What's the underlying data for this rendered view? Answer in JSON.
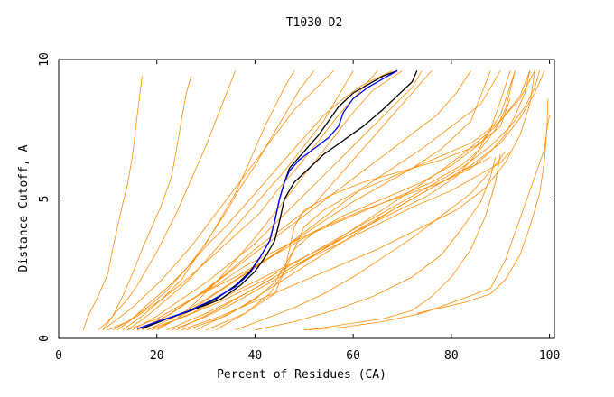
{
  "chart_data": {
    "type": "line",
    "title": "T1030-D2",
    "xlabel": "Percent of Residues (CA)",
    "ylabel": "Distance Cutoff, A",
    "xlim": [
      0,
      101
    ],
    "ylim": [
      0,
      10
    ],
    "xticks": [
      0,
      20,
      40,
      60,
      80,
      100
    ],
    "yticks": [
      0,
      5,
      10
    ],
    "grid": false,
    "legend": "none",
    "colors": {
      "models": "#ff8c00",
      "highlight_black": "#000000",
      "highlight_blue": "#0000ff"
    },
    "series": [
      {
        "color": "#ff8c00",
        "x": [
          5,
          6,
          8,
          10,
          11,
          12,
          13,
          14,
          15,
          16,
          17
        ],
        "y": [
          0.3,
          0.8,
          1.5,
          2.3,
          3.2,
          4.0,
          4.8,
          5.5,
          6.5,
          8.0,
          9.4
        ]
      },
      {
        "color": "#ff8c00",
        "x": [
          9,
          11,
          13,
          15,
          17,
          19,
          21,
          23,
          24,
          25,
          26,
          27
        ],
        "y": [
          0.3,
          0.8,
          1.5,
          2.3,
          3.2,
          4.0,
          4.8,
          5.8,
          6.8,
          7.8,
          8.8,
          9.4
        ]
      },
      {
        "color": "#ff8c00",
        "x": [
          12,
          15,
          18,
          22,
          26,
          30,
          34,
          38,
          42,
          46,
          50,
          54,
          58,
          62,
          68
        ],
        "y": [
          0.3,
          0.7,
          1.2,
          1.8,
          2.5,
          3.3,
          4.0,
          4.8,
          5.6,
          6.4,
          7.2,
          8.0,
          8.6,
          9.1,
          9.6
        ]
      },
      {
        "color": "#ff8c00",
        "x": [
          10,
          14,
          18,
          22,
          26,
          30,
          33,
          36,
          38,
          40,
          42,
          44,
          46,
          48
        ],
        "y": [
          0.3,
          0.6,
          1.1,
          1.7,
          2.5,
          3.4,
          4.3,
          5.2,
          6.0,
          6.8,
          7.6,
          8.3,
          9.0,
          9.6
        ]
      },
      {
        "color": "#ff8c00",
        "x": [
          14,
          18,
          22,
          26,
          30,
          34,
          38,
          42,
          46,
          50,
          54,
          57,
          60
        ],
        "y": [
          0.3,
          0.8,
          1.4,
          2.0,
          2.8,
          3.6,
          4.4,
          5.2,
          6.0,
          6.9,
          7.8,
          8.7,
          9.6
        ]
      },
      {
        "color": "#ff8c00",
        "x": [
          13,
          17,
          21,
          25,
          28,
          31,
          34,
          37,
          40,
          43,
          46,
          49,
          52
        ],
        "y": [
          0.3,
          0.8,
          1.4,
          2.1,
          2.9,
          3.7,
          4.5,
          5.4,
          6.2,
          7.1,
          8.0,
          8.9,
          9.6
        ]
      },
      {
        "color": "#ff8c00",
        "x": [
          20,
          24,
          28,
          32,
          36,
          40,
          44,
          48,
          52,
          56,
          60,
          64,
          70
        ],
        "y": [
          0.3,
          0.7,
          1.3,
          2.0,
          2.8,
          3.6,
          4.5,
          5.4,
          6.3,
          7.2,
          8.1,
          8.9,
          9.6
        ]
      },
      {
        "color": "#ff8c00",
        "x": [
          16,
          22,
          28,
          34,
          40,
          46,
          52,
          56,
          60,
          64,
          68,
          72,
          76
        ],
        "y": [
          0.3,
          0.8,
          1.5,
          2.3,
          3.2,
          4.0,
          4.8,
          5.6,
          6.4,
          7.2,
          8.0,
          8.8,
          9.6
        ]
      },
      {
        "color": "#ff8c00",
        "x": [
          20,
          26,
          32,
          38,
          44,
          50,
          56,
          62,
          68,
          74,
          80,
          86,
          90
        ],
        "y": [
          0.3,
          0.9,
          1.6,
          2.3,
          3.0,
          3.8,
          4.6,
          5.4,
          6.1,
          6.8,
          7.6,
          8.4,
          9.6
        ]
      },
      {
        "color": "#ff8c00",
        "x": [
          18,
          24,
          30,
          36,
          42,
          48,
          54,
          60,
          66,
          72,
          78,
          84,
          88
        ],
        "y": [
          0.3,
          0.8,
          1.4,
          2.1,
          2.8,
          3.5,
          4.2,
          4.9,
          5.5,
          6.1,
          6.8,
          7.8,
          9.6
        ]
      },
      {
        "color": "#ff8c00",
        "x": [
          22,
          30,
          38,
          46,
          54,
          62,
          70,
          76,
          82,
          86,
          88
        ],
        "y": [
          0.3,
          0.9,
          1.6,
          2.4,
          3.2,
          4.0,
          4.8,
          5.4,
          6.0,
          6.3,
          6.5
        ]
      },
      {
        "color": "#ff8c00",
        "x": [
          24,
          32,
          40,
          48,
          56,
          64,
          72,
          80,
          86,
          90,
          92
        ],
        "y": [
          0.3,
          1.0,
          1.8,
          2.6,
          3.3,
          4.0,
          4.7,
          5.3,
          5.9,
          6.3,
          6.7
        ]
      },
      {
        "color": "#ff8c00",
        "x": [
          16,
          22,
          28,
          36,
          44,
          52,
          60,
          68,
          76,
          82,
          86,
          89,
          91,
          92,
          93
        ],
        "y": [
          0.3,
          0.8,
          1.5,
          2.2,
          3.0,
          3.8,
          4.4,
          5.0,
          5.6,
          6.2,
          6.8,
          7.5,
          8.2,
          8.9,
          9.6
        ]
      },
      {
        "color": "#ff8c00",
        "x": [
          14,
          20,
          26,
          32,
          38,
          46,
          54,
          62,
          70,
          78,
          84,
          88,
          91,
          93,
          95,
          96
        ],
        "y": [
          0.3,
          0.7,
          1.3,
          1.9,
          2.6,
          3.3,
          4.0,
          4.6,
          5.1,
          5.6,
          6.1,
          6.7,
          7.3,
          8.0,
          8.8,
          9.6
        ]
      },
      {
        "color": "#ff8c00",
        "x": [
          18,
          26,
          34,
          42,
          50,
          58,
          66,
          74,
          82,
          88,
          92,
          95,
          97,
          98
        ],
        "y": [
          0.3,
          0.8,
          1.4,
          2.1,
          2.9,
          3.7,
          4.5,
          5.3,
          6.1,
          6.9,
          7.6,
          8.3,
          9.0,
          9.6
        ]
      },
      {
        "color": "#ff8c00",
        "x": [
          28,
          36,
          44,
          52,
          60,
          68,
          76,
          84,
          90,
          94,
          97,
          99
        ],
        "y": [
          0.3,
          1.0,
          1.9,
          2.8,
          3.7,
          4.6,
          5.4,
          6.2,
          7.0,
          7.9,
          8.8,
          9.6
        ]
      },
      {
        "color": "#ff8c00",
        "x": [
          26,
          34,
          40,
          44,
          46,
          48,
          52,
          58,
          66,
          74,
          80,
          86,
          90,
          93
        ],
        "y": [
          0.3,
          0.8,
          1.4,
          2.0,
          2.6,
          3.2,
          3.8,
          4.4,
          5.0,
          5.6,
          6.2,
          7.0,
          8.0,
          9.6
        ]
      },
      {
        "color": "#ff8c00",
        "x": [
          30,
          38,
          44,
          46,
          47,
          48,
          50,
          55,
          62,
          70,
          78,
          85,
          90,
          92
        ],
        "y": [
          0.3,
          0.9,
          1.6,
          2.4,
          3.2,
          4.0,
          4.6,
          5.1,
          5.6,
          6.0,
          6.4,
          6.9,
          7.6,
          8.6
        ]
      },
      {
        "color": "#ff8c00",
        "x": [
          36,
          42,
          48,
          54,
          60,
          66,
          72,
          78,
          84,
          88,
          91
        ],
        "y": [
          0.3,
          0.7,
          1.1,
          1.6,
          2.2,
          2.9,
          3.6,
          4.4,
          5.2,
          6.0,
          6.7
        ]
      },
      {
        "color": "#ff8c00",
        "x": [
          40,
          48,
          56,
          64,
          72,
          78,
          82,
          86,
          88,
          89
        ],
        "y": [
          0.3,
          0.6,
          1.0,
          1.5,
          2.2,
          3.0,
          3.9,
          4.9,
          5.8,
          6.5
        ]
      },
      {
        "color": "#ff8c00",
        "x": [
          51,
          58,
          66,
          72,
          76,
          80,
          84,
          87,
          89,
          90
        ],
        "y": [
          0.3,
          0.5,
          0.7,
          1.0,
          1.5,
          2.2,
          3.2,
          4.4,
          5.6,
          6.6
        ]
      },
      {
        "color": "#ff8c00",
        "x": [
          50,
          58,
          66,
          74,
          82,
          88,
          91,
          93,
          95,
          97,
          99,
          99.5,
          100
        ],
        "y": [
          0.3,
          0.4,
          0.6,
          0.9,
          1.4,
          1.8,
          2.8,
          3.8,
          4.8,
          5.8,
          6.8,
          7.5,
          8.0
        ]
      },
      {
        "color": "#ff8c00",
        "x": [
          73,
          78,
          83,
          88,
          91,
          94,
          96,
          98,
          99,
          99.5,
          99.7
        ],
        "y": [
          0.9,
          1.1,
          1.3,
          1.6,
          2.1,
          3.0,
          4.0,
          5.2,
          6.4,
          7.6,
          8.6
        ]
      },
      {
        "color": "#ff8c00",
        "x": [
          8,
          10,
          12,
          14,
          16,
          18,
          20,
          22,
          24,
          26,
          28,
          30,
          32,
          34,
          36
        ],
        "y": [
          0.3,
          0.6,
          1.0,
          1.4,
          1.9,
          2.5,
          3.1,
          3.8,
          4.5,
          5.3,
          6.1,
          6.9,
          7.8,
          8.7,
          9.6
        ]
      },
      {
        "color": "#ff8c00",
        "x": [
          9,
          12,
          15,
          18,
          21,
          24,
          27,
          30,
          33,
          36,
          39,
          42,
          45,
          48,
          52,
          56
        ],
        "y": [
          0.3,
          0.7,
          1.1,
          1.6,
          2.1,
          2.7,
          3.3,
          4.0,
          4.7,
          5.4,
          6.1,
          6.8,
          7.5,
          8.2,
          8.9,
          9.6
        ]
      },
      {
        "color": "#ff8c00",
        "x": [
          15,
          20,
          25,
          30,
          35,
          40,
          44,
          48,
          52,
          56,
          60,
          64,
          68,
          72,
          74
        ],
        "y": [
          0.3,
          0.8,
          1.4,
          2.0,
          2.7,
          3.4,
          4.1,
          4.8,
          5.5,
          6.2,
          6.9,
          7.6,
          8.3,
          9.0,
          9.6
        ]
      },
      {
        "color": "#ff8c00",
        "x": [
          17,
          23,
          29,
          35,
          41,
          47,
          53,
          59,
          65,
          71,
          77,
          81,
          84
        ],
        "y": [
          0.3,
          0.9,
          1.6,
          2.4,
          3.2,
          4.0,
          4.8,
          5.6,
          6.4,
          7.2,
          8.0,
          8.8,
          9.6
        ]
      },
      {
        "color": "#ff8c00",
        "x": [
          19,
          27,
          35,
          43,
          51,
          59,
          67,
          75,
          81,
          85,
          88,
          90,
          92
        ],
        "y": [
          0.3,
          0.9,
          1.6,
          2.3,
          3.0,
          3.7,
          4.4,
          5.1,
          5.8,
          6.6,
          7.5,
          8.5,
          9.6
        ]
      },
      {
        "color": "#ff8c00",
        "x": [
          11,
          16,
          21,
          26,
          31,
          36,
          41,
          45,
          49,
          53,
          57,
          61,
          65
        ],
        "y": [
          0.3,
          0.8,
          1.4,
          2.1,
          2.9,
          3.7,
          4.5,
          5.4,
          6.2,
          7.1,
          8.0,
          8.8,
          9.6
        ]
      },
      {
        "color": "#ff8c00",
        "x": [
          23,
          29,
          35,
          41,
          47,
          53,
          59,
          65,
          71,
          77,
          83,
          89,
          94,
          97
        ],
        "y": [
          0.3,
          0.7,
          1.2,
          1.8,
          2.4,
          3.1,
          3.8,
          4.5,
          5.2,
          5.9,
          6.7,
          7.6,
          8.6,
          9.6
        ]
      },
      {
        "color": "#ff8c00",
        "x": [
          32,
          38,
          43,
          46,
          48,
          50,
          54,
          60,
          68,
          76,
          84,
          90,
          94,
          96
        ],
        "y": [
          0.3,
          0.9,
          1.6,
          2.4,
          3.2,
          4.0,
          4.6,
          5.2,
          5.8,
          6.4,
          7.0,
          7.8,
          8.7,
          9.6
        ]
      },
      {
        "color": "#ff8c00",
        "x": [
          25,
          33,
          41,
          49,
          57,
          65,
          73,
          81,
          87,
          91,
          94,
          96,
          97
        ],
        "y": [
          0.3,
          0.8,
          1.4,
          2.0,
          2.6,
          3.2,
          3.9,
          4.6,
          5.4,
          6.3,
          7.3,
          8.4,
          9.6
        ]
      },
      {
        "color": "#000000",
        "x": [
          17,
          22,
          27,
          32,
          36,
          39,
          41,
          43,
          44,
          45,
          46,
          47,
          49,
          51,
          53,
          55,
          57,
          60,
          63,
          66,
          69
        ],
        "y": [
          0.35,
          0.7,
          1.0,
          1.4,
          1.9,
          2.4,
          2.9,
          3.5,
          4.2,
          5.0,
          5.6,
          6.1,
          6.5,
          6.9,
          7.3,
          7.8,
          8.3,
          8.8,
          9.1,
          9.4,
          9.6
        ]
      },
      {
        "color": "#000000",
        "x": [
          17,
          22,
          27,
          33,
          37,
          40,
          42,
          44,
          45,
          46,
          48,
          51,
          54,
          58,
          62,
          66,
          69,
          72,
          73
        ],
        "y": [
          0.35,
          0.7,
          1.0,
          1.4,
          1.9,
          2.4,
          2.9,
          3.5,
          4.2,
          5.0,
          5.6,
          6.1,
          6.6,
          7.1,
          7.6,
          8.2,
          8.7,
          9.2,
          9.6
        ]
      },
      {
        "color": "#0000ff",
        "x": [
          16,
          21,
          26,
          31,
          36,
          39,
          41,
          43,
          44,
          45,
          46,
          47,
          49,
          52,
          55,
          57,
          58,
          60,
          63,
          66,
          69
        ],
        "y": [
          0.35,
          0.65,
          0.95,
          1.35,
          1.85,
          2.35,
          2.9,
          3.5,
          4.2,
          5.0,
          5.6,
          6.0,
          6.4,
          6.8,
          7.2,
          7.6,
          8.1,
          8.6,
          9.0,
          9.3,
          9.6
        ]
      }
    ]
  }
}
